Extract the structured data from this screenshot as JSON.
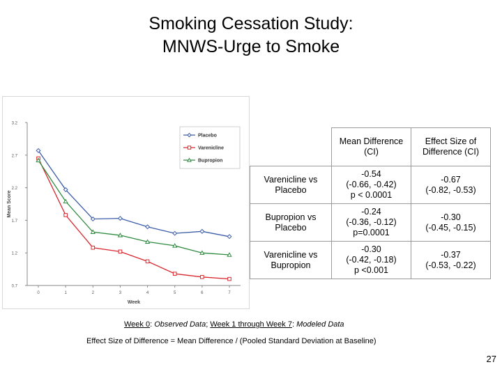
{
  "slide": {
    "title_line1": "Smoking Cessation Study:",
    "title_line2": "MNWS-Urge to Smoke",
    "footnote": {
      "week0": "Week 0",
      "week0_desc": "Observed Data",
      "weeks_modeled": "Week 1 through Week 7",
      "modeled_desc": "Modeled Data"
    },
    "formula": "Effect Size of Difference = Mean Difference / (Pooled Standard Deviation at Baseline)",
    "page_number": "27"
  },
  "table": {
    "headers": [
      "",
      "Mean Difference (CI)",
      "Effect Size of Difference (CI)"
    ],
    "rows": [
      {
        "comparison": "Varenicline vs Placebo",
        "mean_diff": "-0.54",
        "mean_ci": "(-0.66, -0.42)",
        "p": "p < 0.0001",
        "effect": "-0.67",
        "effect_ci": "(-0.82, -0.53)"
      },
      {
        "comparison": "Bupropion vs Placebo",
        "mean_diff": "-0.24",
        "mean_ci": "(-0.36, -0.12)",
        "p": "p=0.0001",
        "effect": "-0.30",
        "effect_ci": "(-0.45, -0.15)"
      },
      {
        "comparison": "Varenicline vs Bupropion",
        "mean_diff": "-0.30",
        "mean_ci": "(-0.42, -0.18)",
        "p": "p <0.001",
        "effect": "-0.37",
        "effect_ci": "(-0.53, -0.22)"
      }
    ]
  },
  "chart_data": {
    "type": "line",
    "xlabel": "Week",
    "ylabel": "Mean Score",
    "x": [
      0,
      1,
      2,
      3,
      4,
      5,
      6,
      7
    ],
    "ylim": [
      0.7,
      3.2
    ],
    "yticks": [
      "3.2",
      "2.7",
      "2.2",
      "1.7",
      "1.2",
      "0.7"
    ],
    "xticks": [
      "0",
      "1",
      "2",
      "3",
      "4",
      "5",
      "6",
      "7"
    ],
    "grid": false,
    "legend_position": "top-right",
    "series": [
      {
        "name": "Placebo",
        "color": "#3a5ba8",
        "marker": "diamond",
        "values": [
          2.77,
          2.17,
          1.72,
          1.73,
          1.6,
          1.5,
          1.53,
          1.45
        ]
      },
      {
        "name": "Varenicline",
        "color": "#d9262d",
        "marker": "square",
        "values": [
          2.65,
          1.78,
          1.28,
          1.22,
          1.07,
          0.88,
          0.83,
          0.8
        ]
      },
      {
        "name": "Bupropion",
        "color": "#2e8a3e",
        "marker": "triangle",
        "values": [
          2.62,
          1.99,
          1.52,
          1.47,
          1.37,
          1.31,
          1.2,
          1.17
        ]
      }
    ]
  }
}
